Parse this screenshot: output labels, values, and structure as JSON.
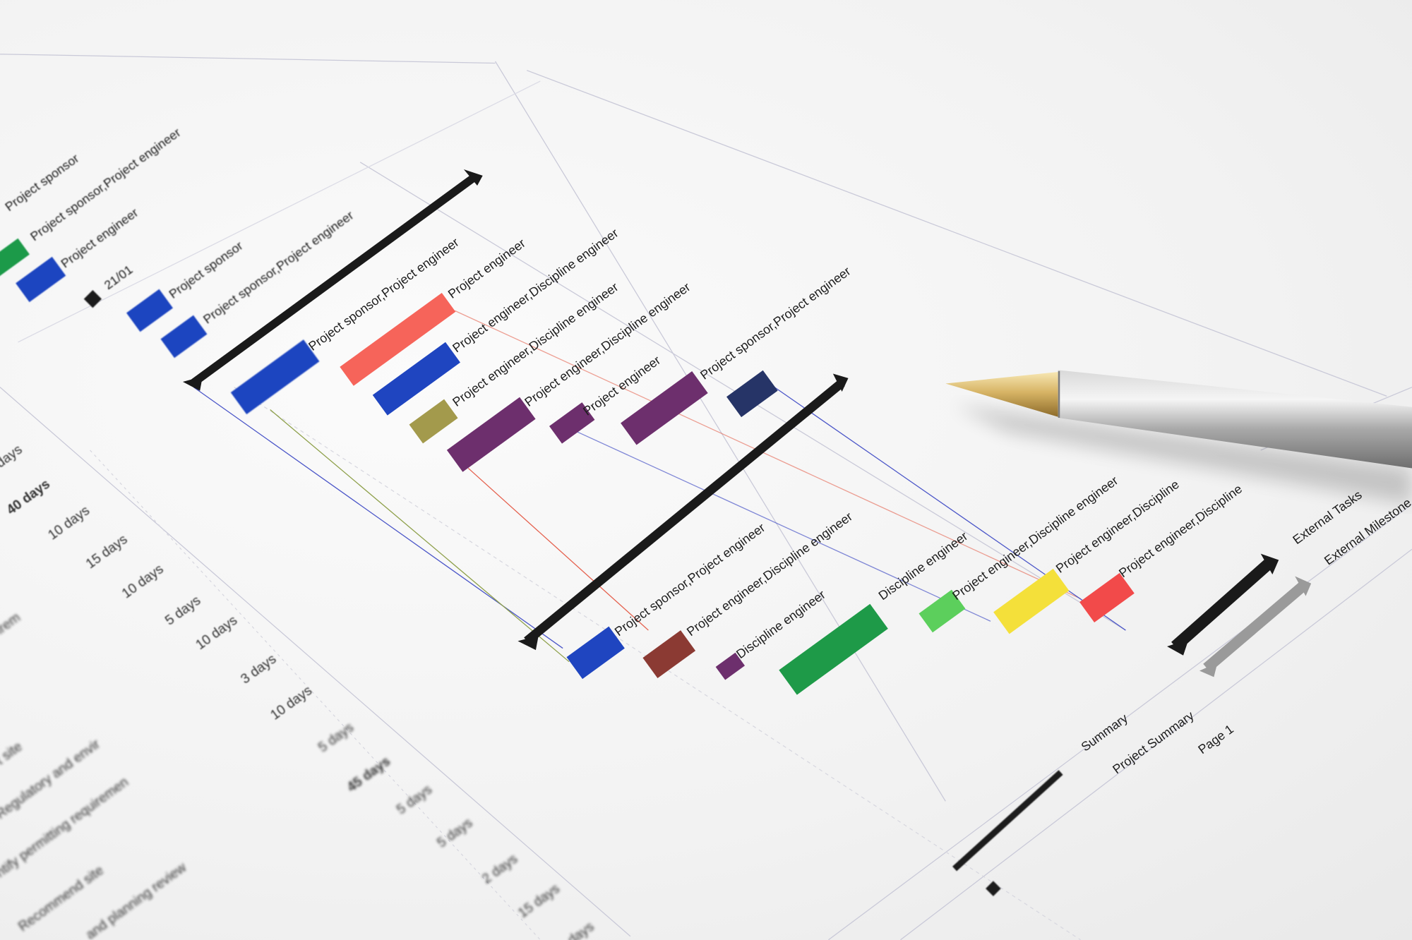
{
  "colors": {
    "paper": "#f4f4f4",
    "task_blue": "#1f45c0",
    "salmon": "#f6645a",
    "olive": "#a39a4c",
    "purple": "#6d2f6d",
    "navy": "#263467",
    "brown": "#8b3a33",
    "green": "#1e9a48",
    "light_green": "#5ccf5c",
    "yellow": "#f4e03a",
    "red": "#f24a4a",
    "summary": "#1a1a1a",
    "project_summary": "#9a9a9a"
  },
  "gantt": {
    "milestone_date": "21/01",
    "resource_labels": [
      "Project sponsor",
      "Project sponsor,Project engineer",
      "Project engineer",
      "Project sponsor",
      "Project sponsor,Project engineer",
      "Project sponsor,Project engineer",
      "Project engineer",
      "Project engineer,Discipline engineer",
      "Project engineer,Discipline engineer",
      "Project engineer,Discipline engineer",
      "Project engineer",
      "Project sponsor,Project engineer",
      "Project sponsor,Project engineer",
      "Project engineer,Discipline engineer",
      "Discipline engineer",
      "Discipline engineer",
      "Project engineer,Discipline engineer",
      "Project engineer,Discipline",
      "Project engineer,Discipline"
    ]
  },
  "table": {
    "durations": [
      "days",
      "40 days",
      "10 days",
      "15 days",
      "10 days",
      "5 days",
      "10 days",
      "3 days",
      "10 days",
      "5 days",
      "45 days",
      "5 days",
      "5 days",
      "2 days",
      "15 days",
      "days"
    ],
    "task_names": [
      "irem",
      "t site",
      "Regulatory and envir",
      "ntify permitting requiremen",
      "Recommend site",
      "and planning review"
    ]
  },
  "legend": {
    "external_tasks": "External Tasks",
    "external_milestone": "External Milestone",
    "summary": "Summary",
    "project_summary": "Project Summary",
    "page": "Page 1"
  }
}
